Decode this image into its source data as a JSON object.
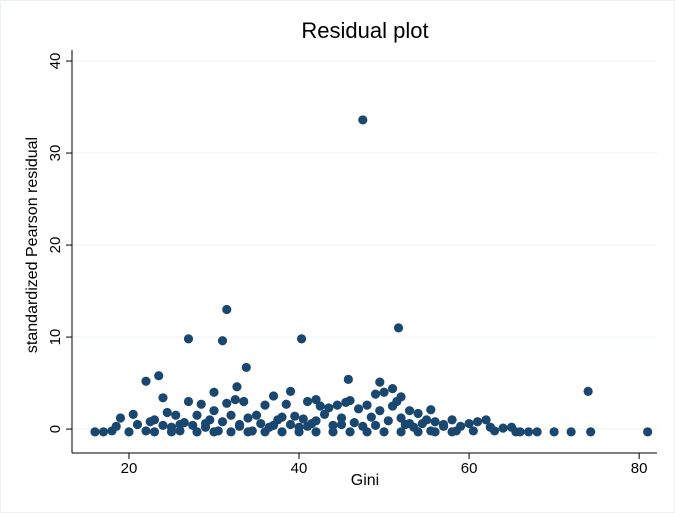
{
  "chart_data": {
    "type": "scatter",
    "title": "Residual plot",
    "x_label": "Gini",
    "y_label": "standardized Pearson residual",
    "color": "#1a476f",
    "grid": true,
    "xlim": [
      13.3,
      82.1
    ],
    "ylim": [
      -2.6,
      41.2
    ],
    "xticks": [
      20,
      40,
      60,
      80
    ],
    "yticks": [
      0,
      10,
      20,
      30,
      40
    ],
    "x": [
      16,
      17,
      18,
      18.5,
      19,
      20,
      20.5,
      21,
      22,
      22.5,
      23,
      24,
      24.5,
      25,
      25.5,
      26,
      26.5,
      27,
      27.5,
      28,
      28.5,
      29,
      29.5,
      30,
      30.5,
      31,
      31.5,
      32,
      32.5,
      33,
      33.5,
      34,
      34.5,
      35,
      35.5,
      36,
      36.5,
      37,
      37.5,
      38,
      38.5,
      39,
      39.5,
      40,
      40.5,
      41,
      41.5,
      42,
      42.5,
      43,
      43.5,
      44,
      44.5,
      45,
      45.5,
      46,
      46.5,
      47,
      47.5,
      48,
      48.5,
      49,
      49.5,
      50,
      50.5,
      51,
      51.5,
      52,
      52.5,
      53,
      53.5,
      54,
      54.5,
      55,
      55.5,
      56,
      57,
      58,
      58.5,
      59,
      60,
      60.5,
      61,
      62,
      62.5,
      63,
      64,
      65,
      65.5,
      66,
      67,
      68,
      70,
      72,
      74.3,
      81,
      47.5,
      31.5,
      51.7,
      27,
      31,
      40.3,
      33.8,
      23.5,
      22,
      45.8,
      49.5,
      51,
      74,
      39,
      32.7,
      30,
      52,
      42,
      55.5,
      23,
      25,
      28,
      30,
      32,
      34,
      36,
      38,
      40,
      42,
      44,
      46,
      48,
      50,
      52,
      54,
      56,
      58,
      24,
      26,
      29,
      33,
      37,
      41,
      45,
      49,
      53,
      57
    ],
    "y": [
      -0.3,
      -0.3,
      -0.2,
      0.3,
      1.2,
      -0.3,
      1.6,
      0.5,
      -0.2,
      0.8,
      1.0,
      3.4,
      1.8,
      0.2,
      1.5,
      -0.2,
      0.7,
      3.0,
      0.4,
      1.5,
      2.7,
      0.2,
      1.0,
      2.0,
      -0.2,
      0.8,
      2.8,
      1.5,
      3.2,
      0.3,
      3.0,
      1.2,
      -0.2,
      1.5,
      0.6,
      2.6,
      0.2,
      3.6,
      1.0,
      1.3,
      2.7,
      0.5,
      1.4,
      0.2,
      1.1,
      3.0,
      0.6,
      0.9,
      2.5,
      1.6,
      2.3,
      0.4,
      2.6,
      1.2,
      2.9,
      3.1,
      0.7,
      2.2,
      0.3,
      2.6,
      1.3,
      3.8,
      2.0,
      4.0,
      0.9,
      2.5,
      3.0,
      1.2,
      0.5,
      2.0,
      0.2,
      1.7,
      0.6,
      1.0,
      -0.2,
      0.8,
      0.3,
      1.0,
      -0.2,
      0.3,
      0.6,
      -0.2,
      0.8,
      1.0,
      0.2,
      -0.2,
      0.1,
      0.2,
      -0.3,
      -0.3,
      -0.3,
      -0.3,
      -0.3,
      -0.3,
      -0.3,
      -0.3,
      33.6,
      13,
      11,
      9.8,
      9.6,
      9.8,
      6.7,
      5.8,
      5.2,
      5.4,
      5.1,
      4.4,
      4.1,
      4.1,
      4.6,
      4.0,
      3.5,
      3.2,
      2.1,
      -0.3,
      -0.3,
      -0.3,
      -0.3,
      -0.3,
      -0.3,
      -0.3,
      -0.3,
      -0.3,
      -0.3,
      -0.3,
      -0.3,
      -0.3,
      -0.3,
      -0.3,
      -0.3,
      -0.3,
      -0.3,
      0.4,
      0.5,
      0.6,
      0.5,
      0.4,
      0.3,
      0.5,
      0.4,
      0.6,
      0.5
    ]
  }
}
